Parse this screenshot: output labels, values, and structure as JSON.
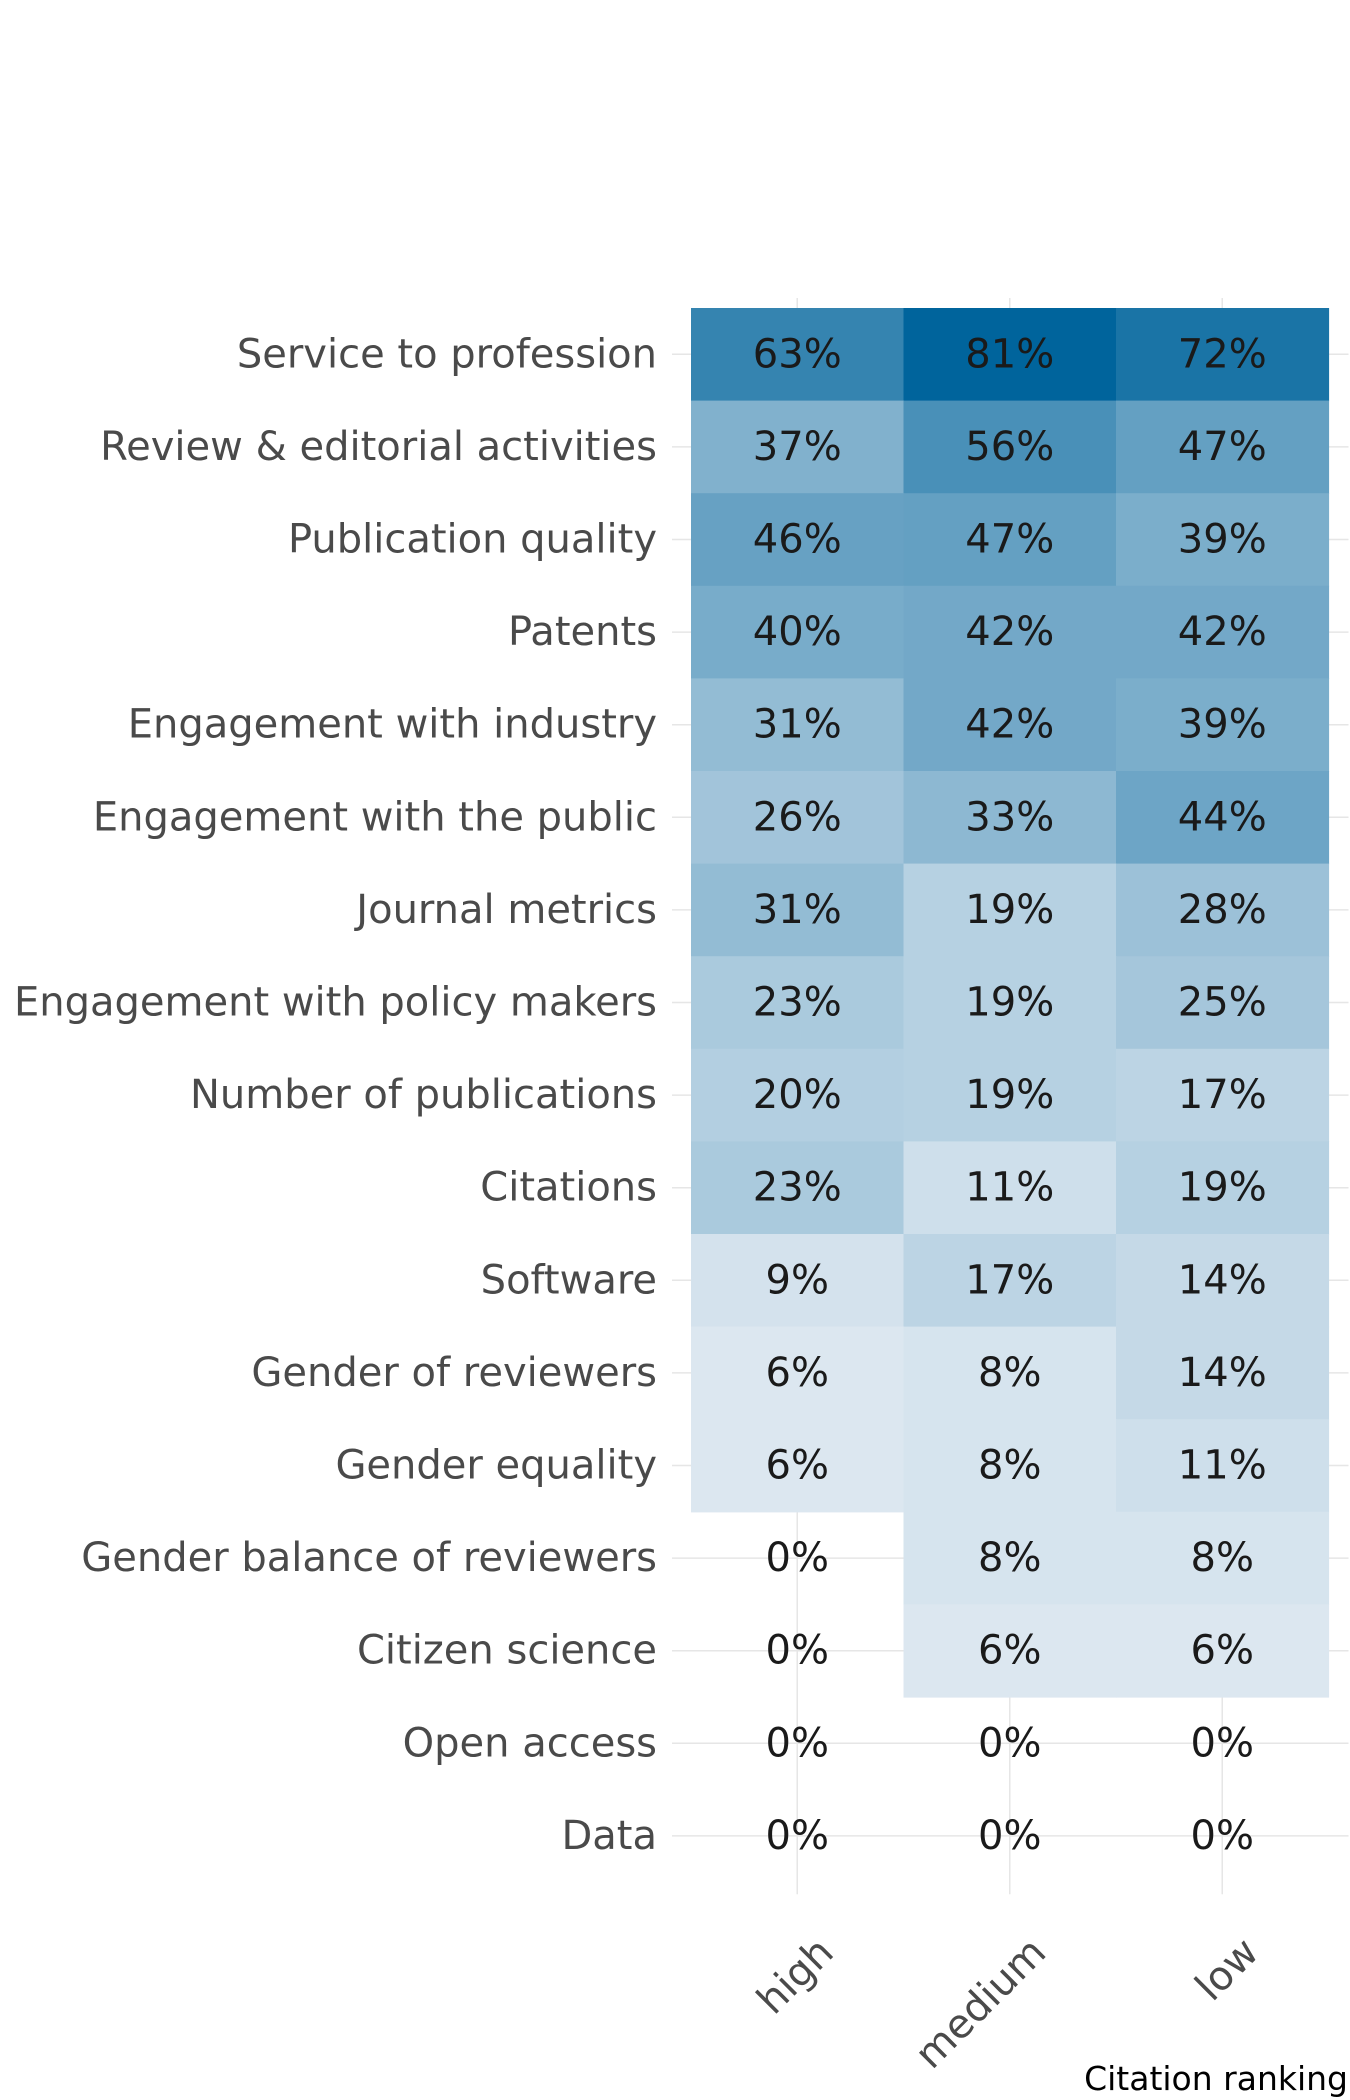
{
  "chart_data": {
    "type": "heatmap",
    "rows": [
      "Service to profession",
      "Review & editorial activities",
      "Publication quality",
      "Patents",
      "Engagement with industry",
      "Engagement with the public",
      "Journal metrics",
      "Engagement with policy makers",
      "Number of publications",
      "Citations",
      "Software",
      "Gender of reviewers",
      "Gender equality",
      "Gender balance of reviewers",
      "Citizen science",
      "Open access",
      "Data"
    ],
    "columns": [
      "high",
      "medium",
      "low"
    ],
    "values": [
      [
        63,
        81,
        72
      ],
      [
        37,
        56,
        47
      ],
      [
        46,
        47,
        39
      ],
      [
        40,
        42,
        42
      ],
      [
        31,
        42,
        39
      ],
      [
        26,
        33,
        44
      ],
      [
        31,
        19,
        28
      ],
      [
        23,
        19,
        25
      ],
      [
        20,
        19,
        17
      ],
      [
        23,
        11,
        19
      ],
      [
        9,
        17,
        14
      ],
      [
        6,
        8,
        14
      ],
      [
        6,
        8,
        11
      ],
      [
        0,
        8,
        8
      ],
      [
        0,
        6,
        6
      ],
      [
        0,
        0,
        0
      ],
      [
        0,
        0,
        0
      ]
    ],
    "value_suffix": "%",
    "xlabel": "Citation ranking",
    "ylabel": "",
    "title": "",
    "color_scale": {
      "low": "#eef2f7",
      "high": "#00649c",
      "zero": "#ffffff"
    },
    "range": [
      0,
      81
    ],
    "grid": true,
    "legend": "none"
  }
}
